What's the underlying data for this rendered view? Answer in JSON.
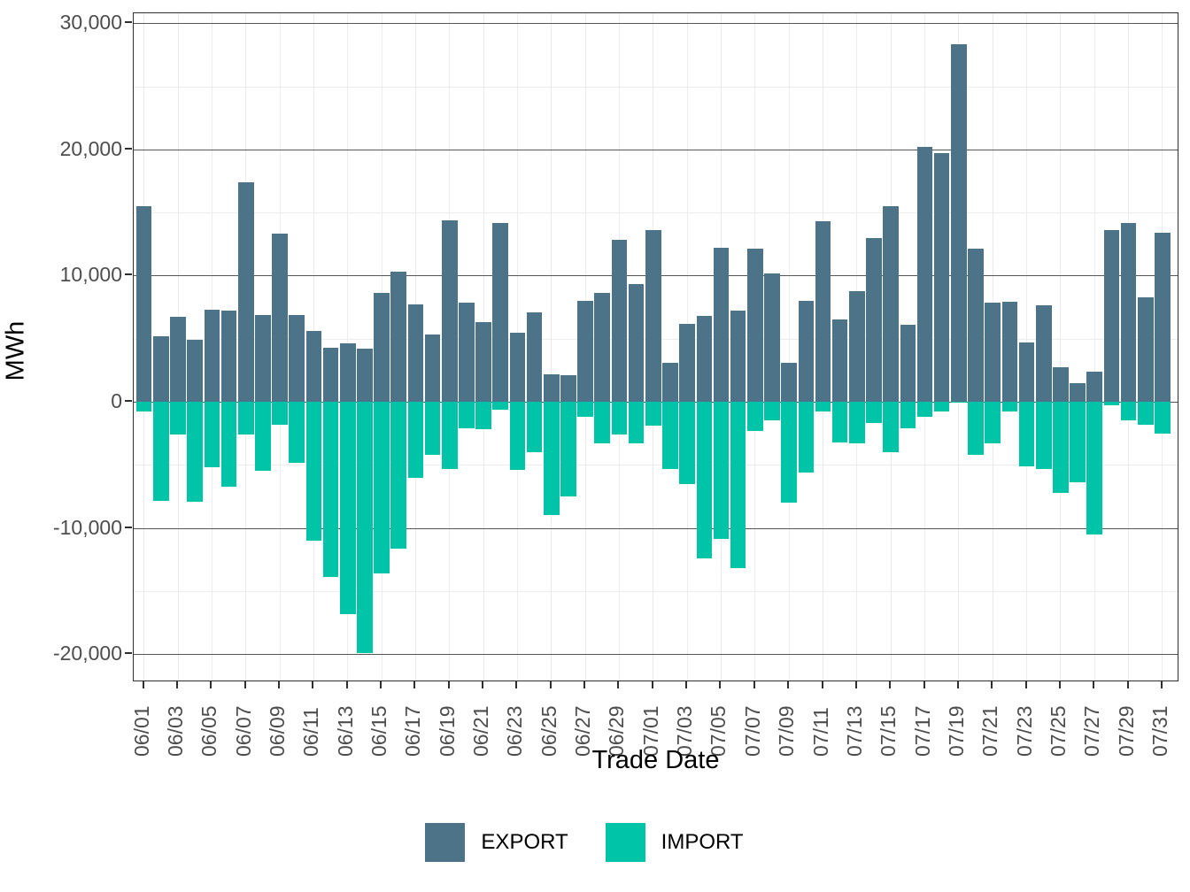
{
  "y_axis": {
    "title": "MWh",
    "tick_labels": [
      "30,000",
      "20,000",
      "10,000",
      "0",
      "-10,000",
      "-20,000"
    ],
    "tick_values": [
      30000,
      20000,
      10000,
      0,
      -10000,
      -20000
    ],
    "minor_values": [
      25000,
      15000,
      5000,
      -5000,
      -15000
    ]
  },
  "x_axis": {
    "title": "Trade Date",
    "tick_labels": [
      "06/01",
      "06/03",
      "06/05",
      "06/07",
      "06/09",
      "06/11",
      "06/13",
      "06/15",
      "06/17",
      "06/19",
      "06/21",
      "06/23",
      "06/25",
      "06/27",
      "06/29",
      "07/01",
      "07/03",
      "07/05",
      "07/07",
      "07/09",
      "07/11",
      "07/13",
      "07/15",
      "07/17",
      "07/19",
      "07/21",
      "07/23",
      "07/25",
      "07/27",
      "07/29",
      "07/31"
    ]
  },
  "legend": {
    "items": [
      {
        "label": "EXPORT",
        "color": "#4d7389"
      },
      {
        "label": "IMPORT",
        "color": "#00c4a8"
      }
    ],
    "position": "bottom"
  },
  "colors": {
    "export": "#4d7389",
    "import": "#00c4a8",
    "grid_major": "#565656",
    "grid_minor": "#ececec",
    "axis_text": "#4d4d4d",
    "panel_border": "#2f2f2f"
  },
  "chart_data": {
    "type": "bar",
    "title": "",
    "xlabel": "Trade Date",
    "ylabel": "MWh",
    "ylim": [
      -22000,
      30600
    ],
    "grid": {
      "y_major_step": 10000,
      "y_minor_step": 5000,
      "vertical_at_labeled_ticks": true
    },
    "legend_position": "bottom",
    "x": [
      "06/01",
      "06/02",
      "06/03",
      "06/04",
      "06/05",
      "06/06",
      "06/07",
      "06/08",
      "06/09",
      "06/10",
      "06/11",
      "06/12",
      "06/13",
      "06/14",
      "06/15",
      "06/16",
      "06/17",
      "06/18",
      "06/19",
      "06/20",
      "06/21",
      "06/22",
      "06/23",
      "06/24",
      "06/25",
      "06/26",
      "06/27",
      "06/28",
      "06/29",
      "06/30",
      "07/01",
      "07/02",
      "07/03",
      "07/04",
      "07/05",
      "07/06",
      "07/07",
      "07/08",
      "07/09",
      "07/10",
      "07/11",
      "07/12",
      "07/13",
      "07/14",
      "07/15",
      "07/16",
      "07/17",
      "07/18",
      "07/19",
      "07/20",
      "07/21",
      "07/22",
      "07/23",
      "07/24",
      "07/25",
      "07/26",
      "07/27",
      "07/28",
      "07/29",
      "07/30",
      "07/31"
    ],
    "series": [
      {
        "name": "EXPORT",
        "color": "#4d7389",
        "values": [
          15500,
          5200,
          6700,
          4900,
          7300,
          7250,
          17400,
          6900,
          13300,
          6900,
          5600,
          4300,
          4600,
          4200,
          8600,
          10300,
          7700,
          5300,
          14400,
          7850,
          6300,
          14200,
          5500,
          7100,
          2200,
          2100,
          8000,
          8600,
          12800,
          9300,
          13600,
          3100,
          6200,
          6800,
          12200,
          7200,
          12100,
          10200,
          3100,
          8000,
          14300,
          6500,
          8800,
          13000,
          15500,
          6100,
          20200,
          19700,
          28300,
          12100,
          7850,
          7900,
          4700,
          7650,
          2700,
          1450,
          2350,
          13600,
          14200,
          8300,
          13400
        ]
      },
      {
        "name": "IMPORT",
        "color": "#00c4a8",
        "values": [
          -800,
          -7850,
          -2600,
          -7900,
          -5200,
          -6700,
          -2600,
          -5450,
          -1800,
          -4850,
          -11000,
          -13900,
          -16800,
          -19900,
          -13600,
          -11650,
          -6000,
          -4200,
          -5300,
          -2100,
          -2200,
          -650,
          -5400,
          -4000,
          -9000,
          -7500,
          -1200,
          -3300,
          -2600,
          -3300,
          -1900,
          -5300,
          -6500,
          -12400,
          -10900,
          -13200,
          -2300,
          -1500,
          -8000,
          -5600,
          -800,
          -3200,
          -3300,
          -1700,
          -4000,
          -2100,
          -1200,
          -800,
          -100,
          -4200,
          -3300,
          -800,
          -5100,
          -5300,
          -7200,
          -6400,
          -10500,
          -250,
          -1500,
          -1800,
          -2500
        ]
      }
    ]
  }
}
